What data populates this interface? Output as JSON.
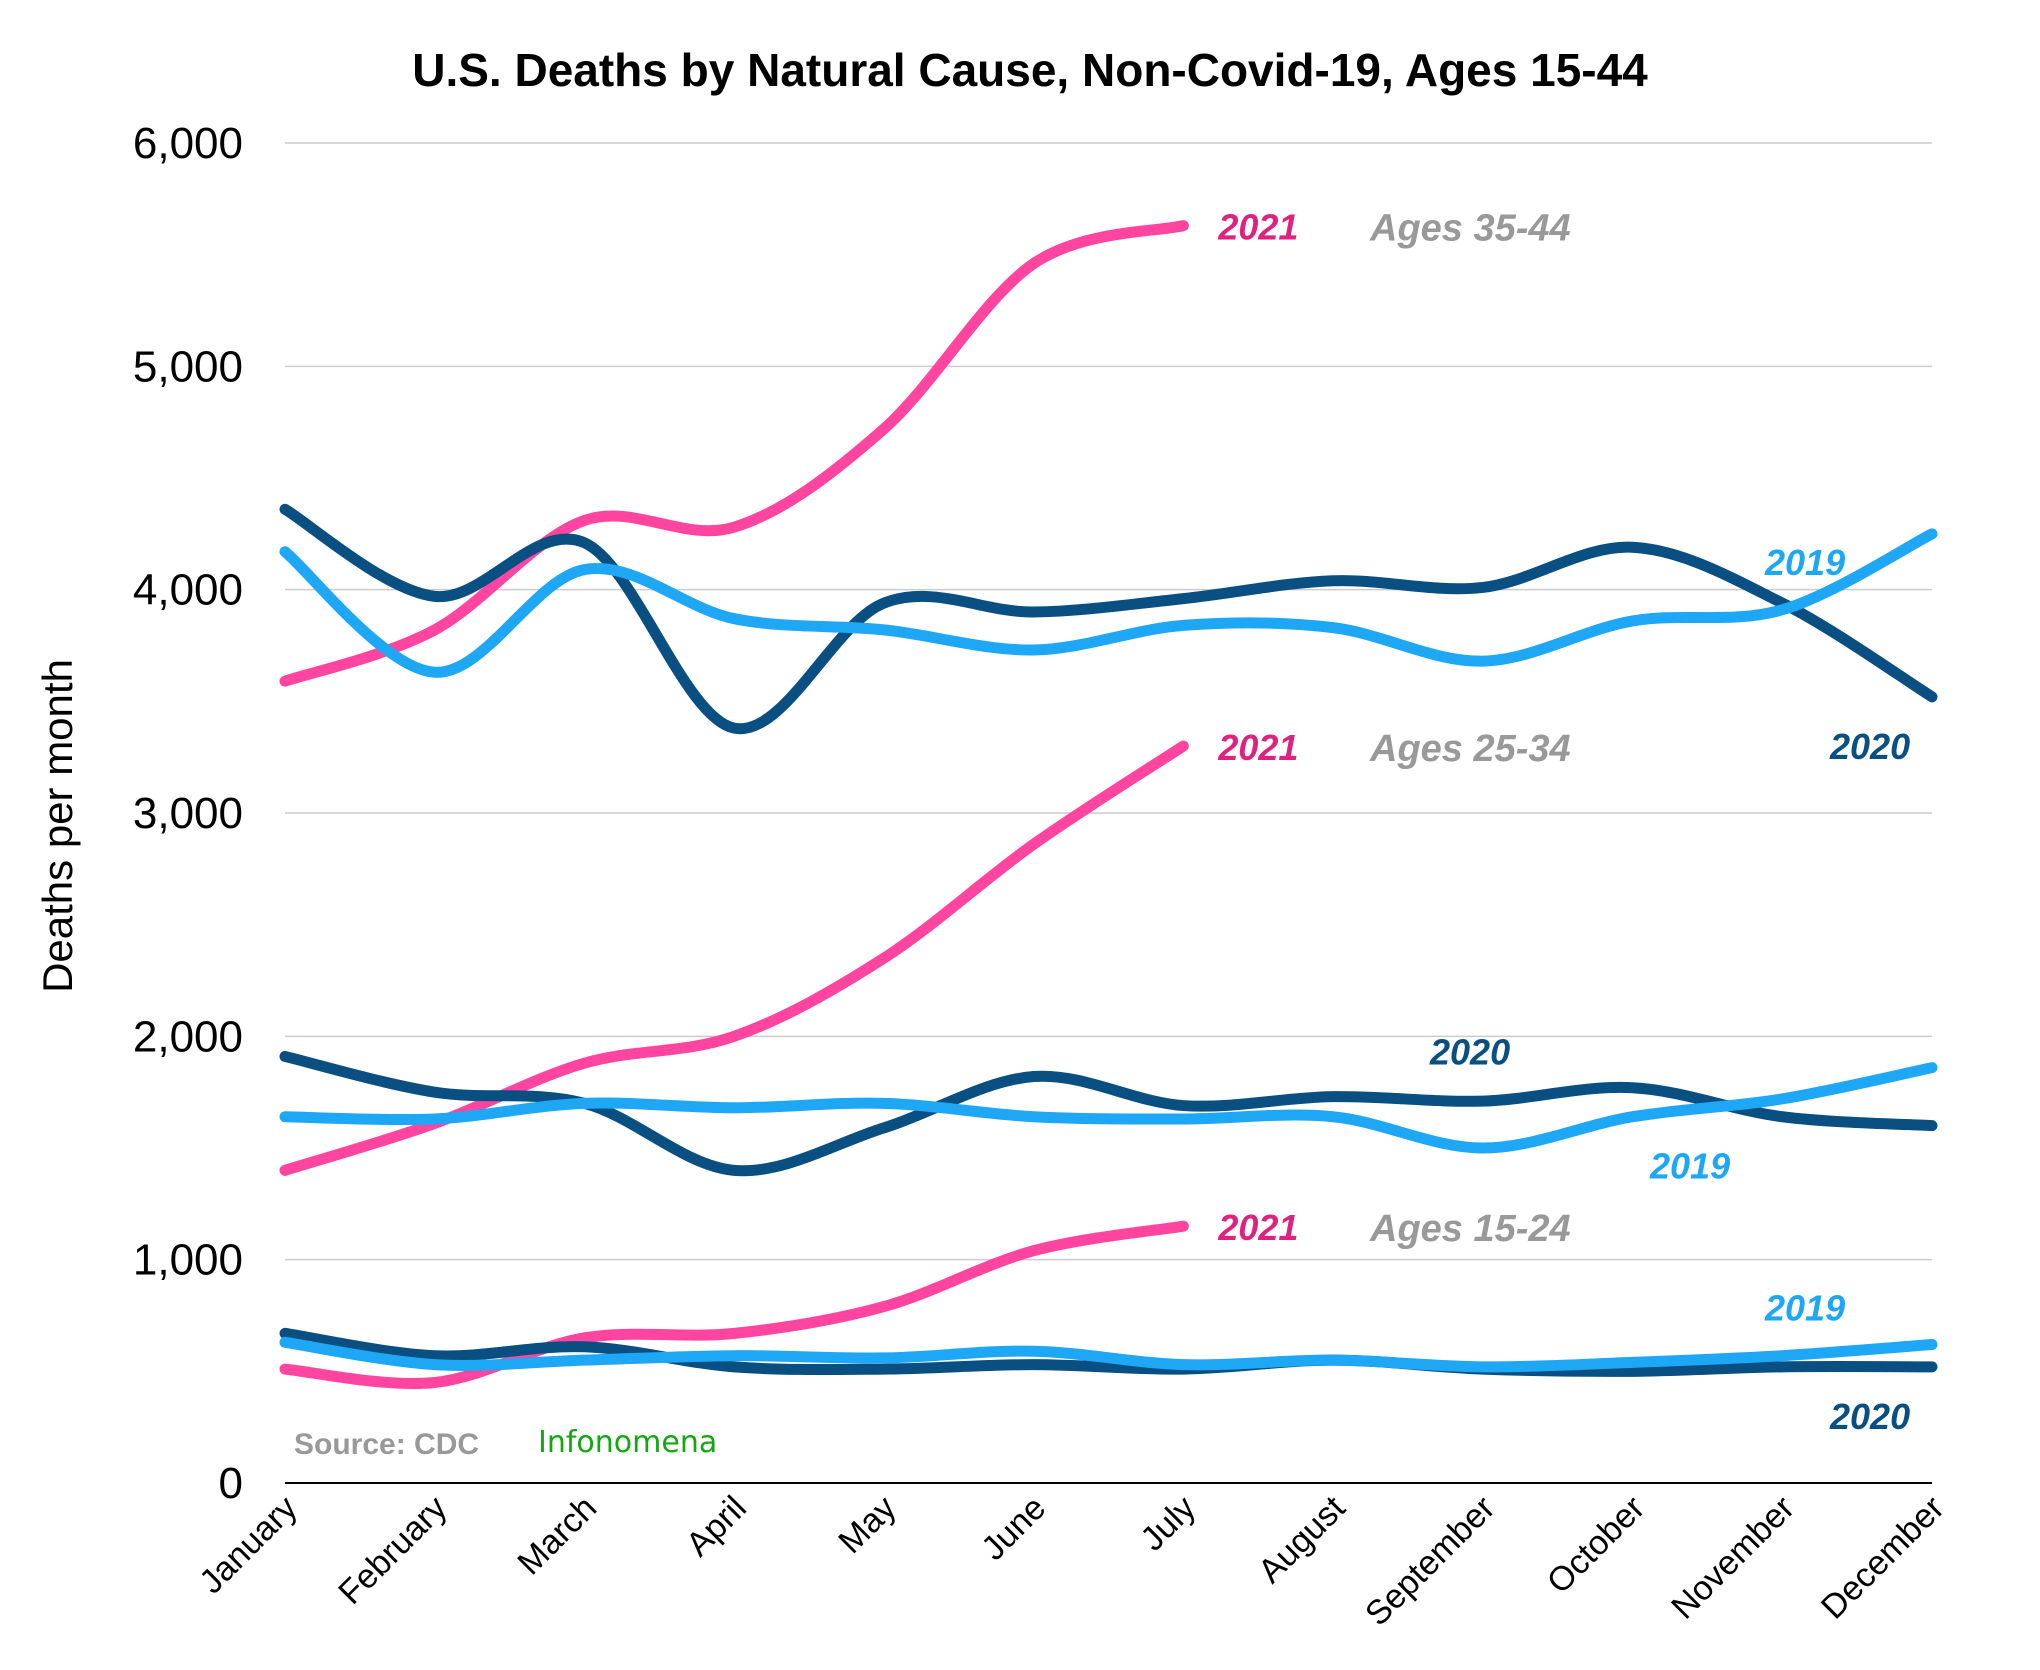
{
  "chart_data": {
    "type": "line",
    "title": "U.S. Deaths by Natural Cause, Non-Covid-19, Ages 15-44",
    "ylabel": "Deaths per month",
    "xlabel": "",
    "ylim": [
      0,
      6000
    ],
    "ytick_labels": [
      "0",
      "1,000",
      "2,000",
      "3,000",
      "4,000",
      "5,000",
      "6,000"
    ],
    "categories": [
      "January",
      "February",
      "March",
      "April",
      "May",
      "June",
      "July",
      "August",
      "September",
      "October",
      "November",
      "December"
    ],
    "grid": true,
    "colors": {
      "2019": "#1ea7f5",
      "2020": "#0a4f82",
      "2021": "#ff45a0",
      "group_label": "#999999"
    },
    "groups": [
      {
        "label": "Ages 35-44",
        "series": [
          {
            "name": "2021",
            "values": [
              3590,
              3820,
              4310,
              4280,
              4720,
              5460,
              5630
            ]
          },
          {
            "name": "2020",
            "values": [
              4360,
              3970,
              4210,
              3380,
              3940,
              3900,
              3960,
              4040,
              4010,
              4190,
              3940,
              3520
            ]
          },
          {
            "name": "2019",
            "values": [
              4170,
              3630,
              4090,
              3870,
              3820,
              3730,
              3840,
              3830,
              3680,
              3860,
              3910,
              4250
            ]
          }
        ]
      },
      {
        "label": "Ages 25-34",
        "series": [
          {
            "name": "2021",
            "values": [
              1400,
              1610,
              1880,
              2000,
              2350,
              2860,
              3300
            ]
          },
          {
            "name": "2020",
            "values": [
              1910,
              1750,
              1700,
              1400,
              1590,
              1820,
              1690,
              1730,
              1710,
              1770,
              1640,
              1600
            ]
          },
          {
            "name": "2019",
            "values": [
              1640,
              1630,
              1700,
              1680,
              1700,
              1640,
              1630,
              1640,
              1500,
              1640,
              1720,
              1860
            ]
          }
        ]
      },
      {
        "label": "Ages 15-24",
        "series": [
          {
            "name": "2021",
            "values": [
              510,
              450,
              650,
              670,
              790,
              1040,
              1150
            ]
          },
          {
            "name": "2020",
            "values": [
              670,
              570,
              610,
              520,
              510,
              530,
              510,
              550,
              510,
              500,
              520,
              520
            ]
          },
          {
            "name": "2019",
            "values": [
              630,
              530,
              550,
              570,
              560,
              590,
              530,
              550,
              520,
              540,
              570,
              620
            ]
          }
        ]
      }
    ]
  },
  "source": {
    "label": "Source: CDC",
    "brand": "Infonomena"
  }
}
